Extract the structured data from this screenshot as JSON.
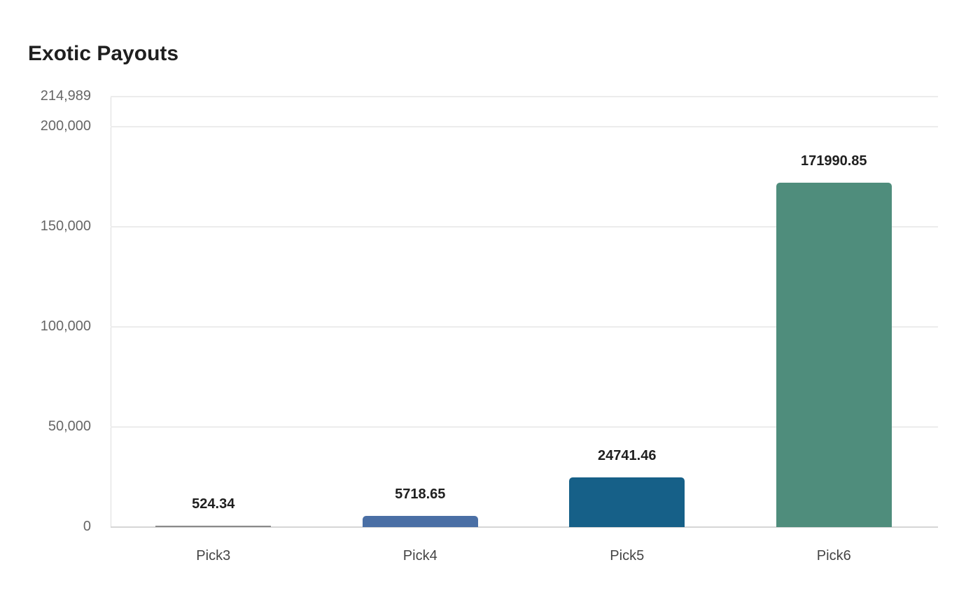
{
  "header": {
    "title": "Exotic Payouts"
  },
  "chart_data": {
    "type": "bar",
    "title": "Exotic Payouts",
    "xlabel": "",
    "ylabel": "",
    "categories": [
      "Pick3",
      "Pick4",
      "Pick5",
      "Pick6"
    ],
    "values": [
      524.34,
      5718.65,
      24741.46,
      171990.85
    ],
    "value_labels": [
      "524.34",
      "5718.65",
      "24741.46",
      "171990.85"
    ],
    "colors": [
      "#8a8a8a",
      "#4a6fa5",
      "#166088",
      "#4f8d7c"
    ],
    "ylim": [
      0,
      214989
    ],
    "yticks": [
      0,
      50000,
      100000,
      150000,
      200000,
      214989
    ],
    "ytick_labels": [
      "0",
      "50,000",
      "100,000",
      "150,000",
      "200,000",
      "214,989"
    ],
    "grid": true,
    "legend": null
  }
}
